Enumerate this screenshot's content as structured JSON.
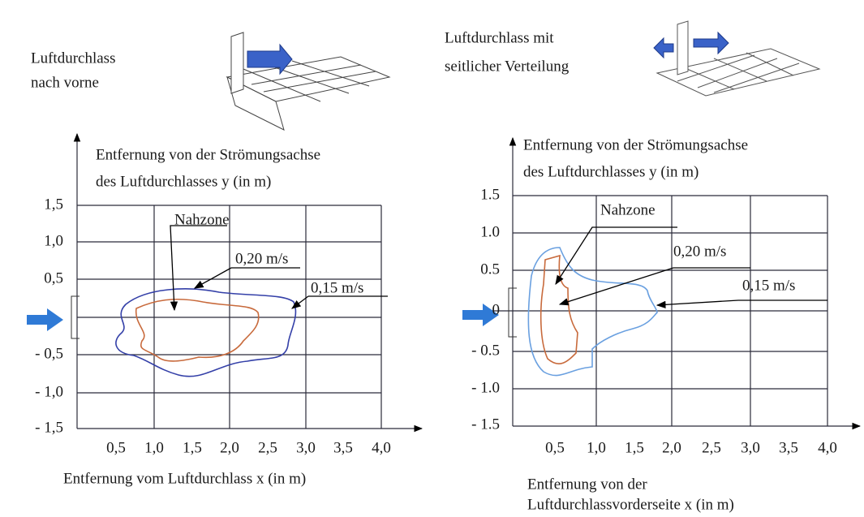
{
  "panels": [
    {
      "title": [
        "Luftdurchlass",
        "nach vorne"
      ],
      "y_axis_label": [
        "Entfernung von der Strömungsachse",
        "des Luftdurchlasses y (in m)"
      ],
      "y_ticks": [
        "1,5",
        "1,0",
        "0,5",
        "- 0,5",
        "- 1,0",
        "- 1,5"
      ],
      "x_ticks": [
        "0,5",
        "1,0",
        "1,5",
        "2,0",
        "2,5",
        "3,0",
        "3,5",
        "4,0"
      ],
      "x_axis_label": [
        "Entfernung vom Luftdurchlass x (in m)"
      ],
      "zone_label": "Nahzone",
      "contour_labels": [
        "0,20 m/s",
        "0,15 m/s"
      ]
    },
    {
      "title": [
        "Luftdurchlass mit",
        "seitlicher Verteilung"
      ],
      "y_axis_label": [
        "Entfernung von der Strömungsachse",
        "des Luftdurchlasses y (in m)"
      ],
      "y_ticks": [
        "1.5",
        "1.0",
        "0.5",
        "0",
        "- 0.5",
        "- 1.0",
        "- 1.5"
      ],
      "x_ticks": [
        "0,5",
        "1,0",
        "1,5",
        "2,0",
        "2,5",
        "3,0",
        "3,5",
        "4,0"
      ],
      "x_axis_label": [
        "Entfernung von der",
        "Luftdurchlassvorderseite x (in m)"
      ],
      "zone_label": "Nahzone",
      "contour_labels": [
        "0,20 m/s",
        "0,15 m/s"
      ]
    }
  ]
}
